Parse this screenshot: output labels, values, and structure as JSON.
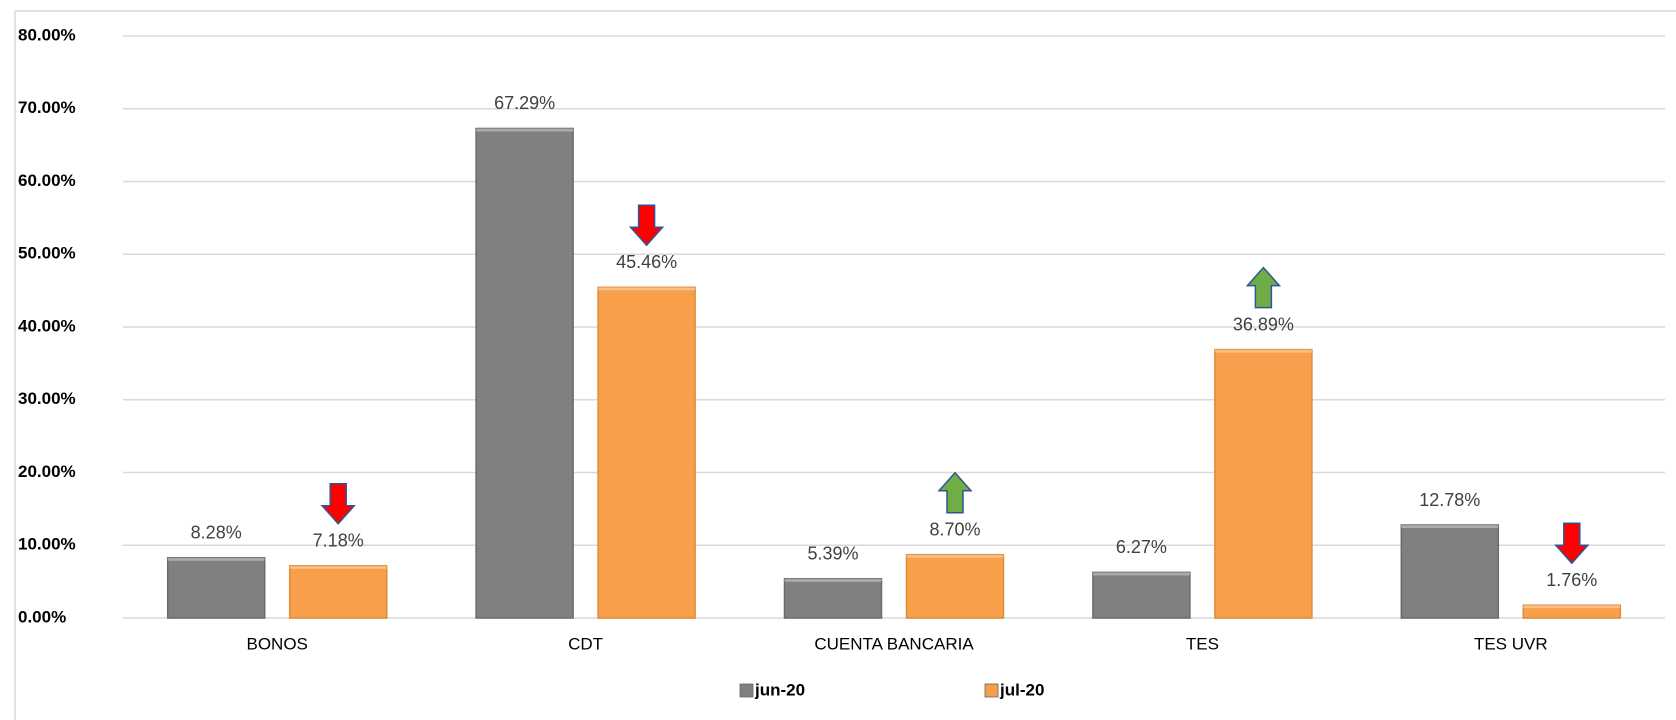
{
  "chart_data": {
    "type": "bar",
    "categories": [
      "BONOS",
      "CDT",
      "CUENTA BANCARIA",
      "TES",
      "TES UVR"
    ],
    "series": [
      {
        "name": "jun-20",
        "color": "#808080",
        "values": [
          8.28,
          67.29,
          5.39,
          6.27,
          12.78
        ],
        "value_labels": [
          "8.28%",
          "67.29%",
          "5.39%",
          "6.27%",
          "12.78%"
        ]
      },
      {
        "name": "jul-20",
        "color": "#f79f4a",
        "values": [
          7.18,
          45.46,
          8.7,
          36.89,
          1.76
        ],
        "value_labels": [
          "7.18%",
          "45.46%",
          "8.70%",
          "36.89%",
          "1.76%"
        ]
      }
    ],
    "ylim": [
      0,
      80
    ],
    "yticks": [
      {
        "value": 0,
        "label": "0.00%"
      },
      {
        "value": 10,
        "label": "10.00%"
      },
      {
        "value": 20,
        "label": "20.00%"
      },
      {
        "value": 30,
        "label": "30.00%"
      },
      {
        "value": 40,
        "label": "40.00%"
      },
      {
        "value": 50,
        "label": "50.00%"
      },
      {
        "value": 60,
        "label": "60.00%"
      },
      {
        "value": 70,
        "label": "70.00%"
      },
      {
        "value": 80,
        "label": "80.00%"
      }
    ],
    "grid": true,
    "legend": "bottom"
  }
}
